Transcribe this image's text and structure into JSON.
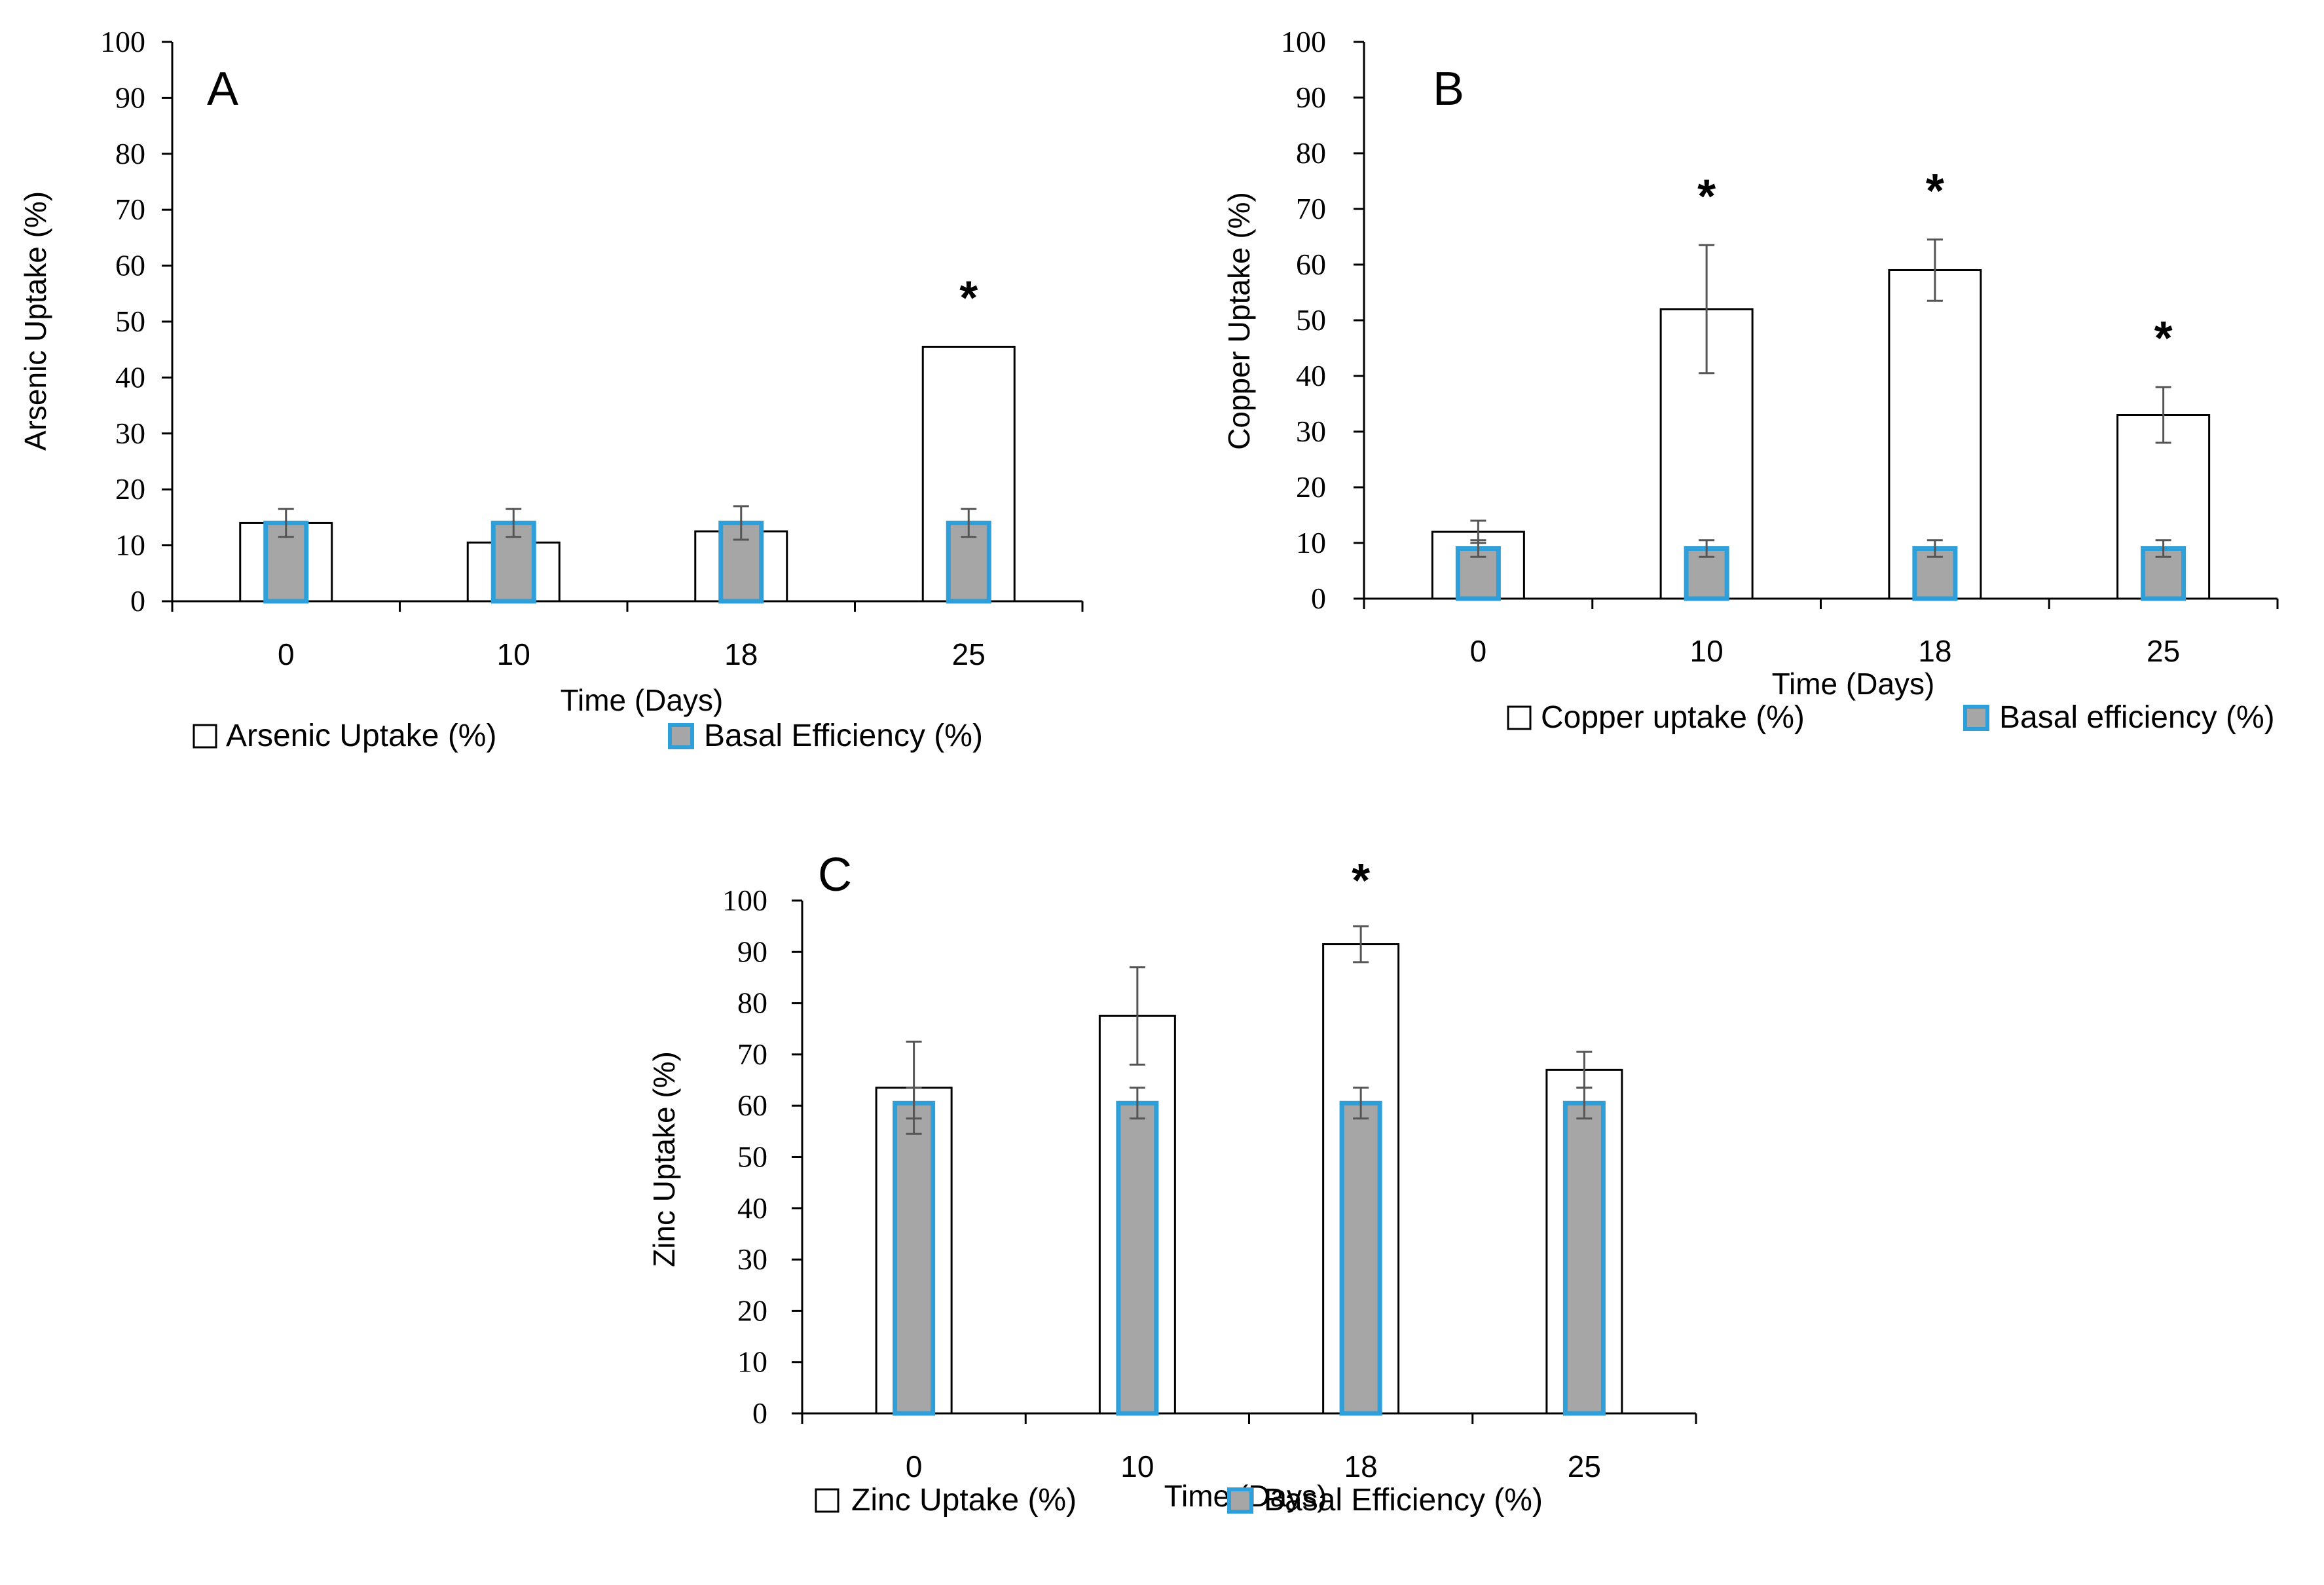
{
  "colors": {
    "uptake_fill": "#ffffff",
    "uptake_stroke": "#000000",
    "basal_fill": "#a6a6a6",
    "basal_stroke": "#2e9fd8",
    "error_bar": "#555555",
    "axis": "#000000"
  },
  "chart_data": [
    {
      "type": "bar",
      "panel_label": "A",
      "categories": [
        "0",
        "10",
        "18",
        "25"
      ],
      "xlabel": "Time (Days)",
      "ylabel": "Arsenic Uptake (%)",
      "ylim": [
        0,
        100
      ],
      "yticks": [
        "0",
        "10",
        "20",
        "30",
        "40",
        "50",
        "60",
        "70",
        "80",
        "90",
        "100"
      ],
      "series": [
        {
          "name": "Arsenic Uptake (%)",
          "values": [
            14,
            10.5,
            12.5,
            45.5
          ],
          "errors": [
            0,
            0,
            0,
            0
          ]
        },
        {
          "name": "Basal Efficiency (%)",
          "values": [
            14,
            14,
            14,
            14
          ],
          "errors": [
            2.5,
            2.5,
            3,
            2.5
          ]
        }
      ],
      "significance": [
        "",
        "",
        "",
        "*"
      ]
    },
    {
      "type": "bar",
      "panel_label": "B",
      "categories": [
        "0",
        "10",
        "18",
        "25"
      ],
      "xlabel": "Time (Days)",
      "ylabel": "Copper Uptake (%)",
      "ylim": [
        0,
        100
      ],
      "yticks": [
        "0",
        "10",
        "20",
        "30",
        "40",
        "50",
        "60",
        "70",
        "80",
        "90",
        "100"
      ],
      "series": [
        {
          "name": "Copper uptake (%)",
          "values": [
            12,
            52,
            59,
            33
          ],
          "errors": [
            2,
            11.5,
            5.5,
            5
          ]
        },
        {
          "name": "Basal efficiency (%)",
          "values": [
            9,
            9,
            9,
            9
          ],
          "errors": [
            1.5,
            1.5,
            1.5,
            1.5
          ]
        }
      ],
      "significance": [
        "",
        "*",
        "*",
        "*"
      ]
    },
    {
      "type": "bar",
      "panel_label": "C",
      "categories": [
        "0",
        "10",
        "18",
        "25"
      ],
      "xlabel": "Time (Days)",
      "ylabel": "Zinc Uptake (%)",
      "ylim": [
        0,
        100
      ],
      "yticks": [
        "0",
        "10",
        "20",
        "30",
        "40",
        "50",
        "60",
        "70",
        "80",
        "90",
        "100"
      ],
      "series": [
        {
          "name": "Zinc Uptake (%)",
          "values": [
            63.5,
            77.5,
            91.5,
            67
          ],
          "errors": [
            9,
            9.5,
            3.5,
            3.5
          ]
        },
        {
          "name": "Basal Efficiency (%)",
          "values": [
            60.5,
            60.5,
            60.5,
            60.5
          ],
          "errors": [
            3,
            3,
            3,
            3
          ]
        }
      ],
      "significance": [
        "",
        "",
        "*",
        ""
      ]
    }
  ]
}
